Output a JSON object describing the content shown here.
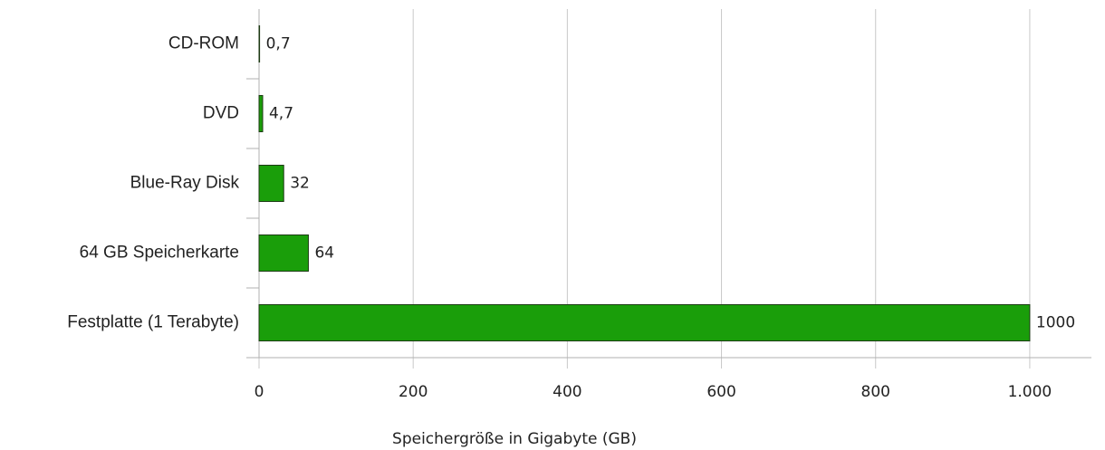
{
  "chart_data": {
    "type": "bar",
    "orientation": "horizontal",
    "x_label": "Speichergröße in Gigabyte (GB)",
    "categories": [
      "CD-ROM",
      "DVD",
      "Blue-Ray Disk",
      "64 GB Speicherkarte",
      "Festplatte (1 Terabyte)"
    ],
    "values": [
      0.7,
      4.7,
      32,
      64,
      1000
    ],
    "value_labels": [
      "0,7",
      "4,7",
      "32",
      "64",
      "1000"
    ],
    "color": "#1a9e0a",
    "xlim": [
      0,
      1080
    ],
    "xticks": [
      0,
      200,
      400,
      600,
      800,
      {
        "value": 1000,
        "label": "1.000"
      }
    ],
    "grid": true
  }
}
